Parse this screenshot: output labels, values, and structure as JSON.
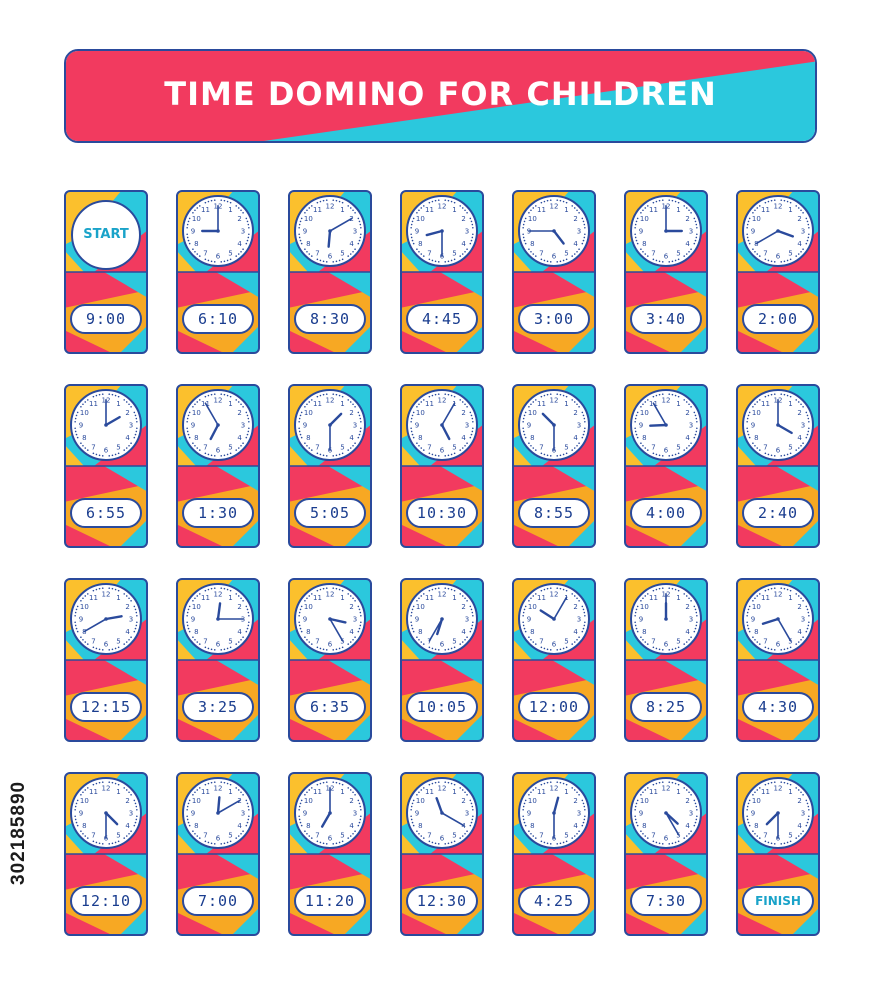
{
  "title": "TIME DOMINO FOR CHILDREN",
  "side_code": "302185890",
  "colors": {
    "pink": "#f23a5f",
    "cyan": "#2bc8dd",
    "yellow": "#fbc02d",
    "orange": "#f7a823",
    "navy": "#2a4a9c"
  },
  "start_label": "START",
  "finish_label": "FINISH",
  "dominoes": [
    {
      "clock": "start",
      "digital": "9:00"
    },
    {
      "clock": "9:00",
      "digital": "6:10"
    },
    {
      "clock": "6:10",
      "digital": "8:30"
    },
    {
      "clock": "8:30",
      "digital": "4:45"
    },
    {
      "clock": "4:45",
      "digital": "3:00"
    },
    {
      "clock": "3:00",
      "digital": "3:40"
    },
    {
      "clock": "3:40",
      "digital": "2:00"
    },
    {
      "clock": "2:00",
      "digital": "6:55"
    },
    {
      "clock": "6:55",
      "digital": "1:30"
    },
    {
      "clock": "1:30",
      "digital": "5:05"
    },
    {
      "clock": "5:05",
      "digital": "10:30"
    },
    {
      "clock": "10:30",
      "digital": "8:55"
    },
    {
      "clock": "8:55",
      "digital": "4:00"
    },
    {
      "clock": "4:00",
      "digital": "2:40"
    },
    {
      "clock": "2:40",
      "digital": "12:15"
    },
    {
      "clock": "12:15",
      "digital": "3:25"
    },
    {
      "clock": "3:25",
      "digital": "6:35"
    },
    {
      "clock": "6:35",
      "digital": "10:05"
    },
    {
      "clock": "10:05",
      "digital": "12:00"
    },
    {
      "clock": "12:00",
      "digital": "8:25"
    },
    {
      "clock": "8:25",
      "digital": "4:30"
    },
    {
      "clock": "4:30",
      "digital": "12:10"
    },
    {
      "clock": "12:10",
      "digital": "7:00"
    },
    {
      "clock": "7:00",
      "digital": "11:20"
    },
    {
      "clock": "11:20",
      "digital": "12:30"
    },
    {
      "clock": "12:30",
      "digital": "4:25"
    },
    {
      "clock": "4:25",
      "digital": "7:30"
    },
    {
      "clock": "7:30",
      "digital": "finish"
    }
  ]
}
